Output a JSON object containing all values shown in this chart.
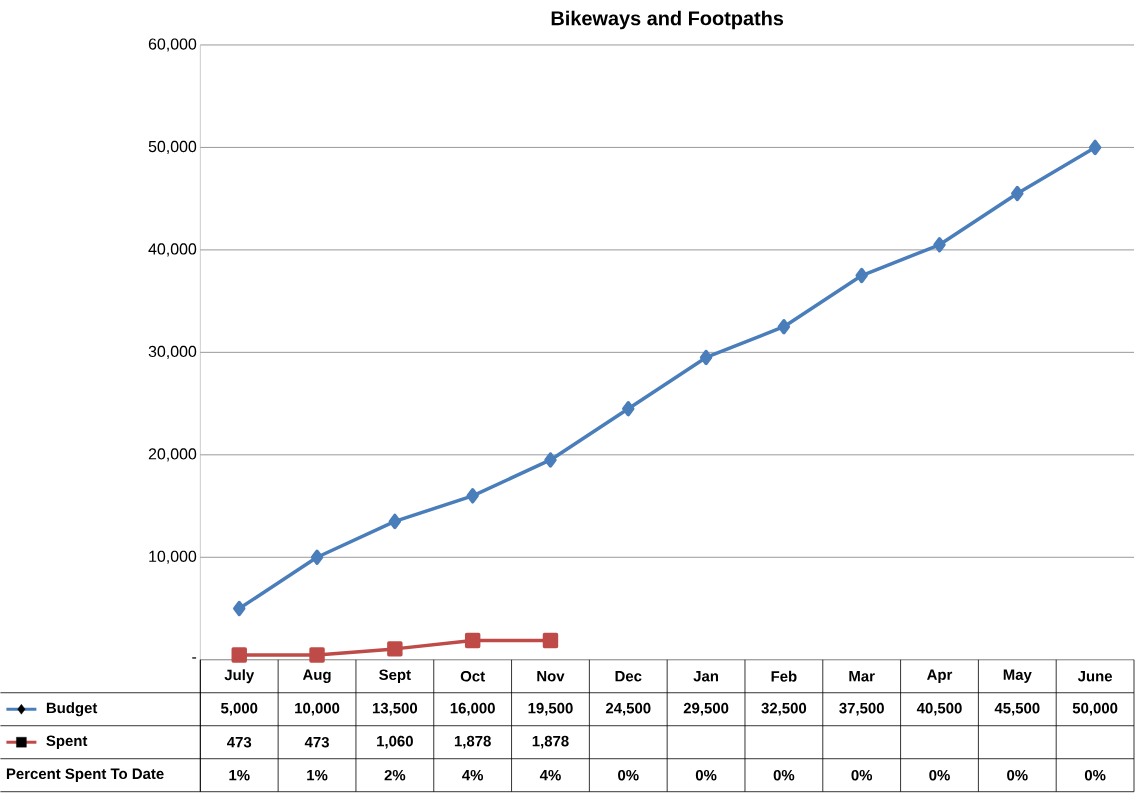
{
  "chart_data": {
    "type": "line",
    "title": "Bikeways and Footpaths",
    "categories": [
      "July",
      "Aug",
      "Sept",
      "Oct",
      "Nov",
      "Dec",
      "Jan",
      "Feb",
      "Mar",
      "Apr",
      "May",
      "June"
    ],
    "series": [
      {
        "name": "Budget",
        "color": "#4a7ebb",
        "marker": "diamond",
        "values": [
          5000,
          10000,
          13500,
          16000,
          19500,
          24500,
          29500,
          32500,
          37500,
          40500,
          45500,
          50000
        ],
        "value_labels": [
          "5,000",
          "10,000",
          "13,500",
          "16,000",
          "19,500",
          "24,500",
          "29,500",
          "32,500",
          "37,500",
          "40,500",
          "45,500",
          "50,000"
        ]
      },
      {
        "name": "Spent",
        "color": "#be4b48",
        "marker": "square",
        "values": [
          473,
          473,
          1060,
          1878,
          1878,
          null,
          null,
          null,
          null,
          null,
          null,
          null
        ],
        "value_labels": [
          "473",
          "473",
          "1,060",
          "1,878",
          "1,878",
          null,
          null,
          null,
          null,
          null,
          null,
          null
        ]
      }
    ],
    "annotations": [
      "Percent Spent To Date",
      "1%",
      "1%",
      "2%",
      "4%",
      "4%",
      "0%",
      "0%",
      "0%",
      "0%",
      "0%",
      "0%",
      "0%"
    ],
    "ylim": [
      0,
      60000
    ],
    "yticks": [
      {
        "value": 0,
        "label": "-"
      },
      {
        "value": 10000,
        "label": "10,000"
      },
      {
        "value": 20000,
        "label": "20,000"
      },
      {
        "value": 30000,
        "label": "30,000"
      },
      {
        "value": 40000,
        "label": "40,000"
      },
      {
        "value": 50000,
        "label": "50,000"
      },
      {
        "value": 60000,
        "label": "60,000"
      }
    ],
    "grid": "y",
    "line_style": "solid",
    "legend": "bottom"
  }
}
